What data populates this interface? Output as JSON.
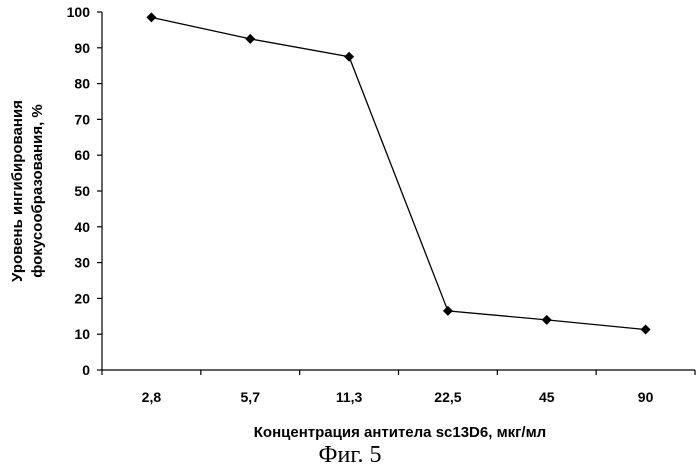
{
  "chart_data": {
    "type": "line",
    "categories": [
      "2,8",
      "5,7",
      "11,3",
      "22,5",
      "45",
      "90"
    ],
    "series": [
      {
        "values": [
          98.5,
          92.5,
          87.5,
          16.5,
          14,
          11.3
        ]
      }
    ],
    "xlabel": "Концентрация антитела sc13D6, мкг/мл",
    "ylabel_lines": [
      "Уровень ингибирования",
      "фокусообразования, %"
    ],
    "ylim": [
      0,
      100
    ],
    "yticks": [
      0,
      10,
      20,
      30,
      40,
      50,
      60,
      70,
      80,
      90,
      100
    ],
    "marker": "diamond",
    "grid": false,
    "legend": "none"
  },
  "caption": "Фиг. 5"
}
